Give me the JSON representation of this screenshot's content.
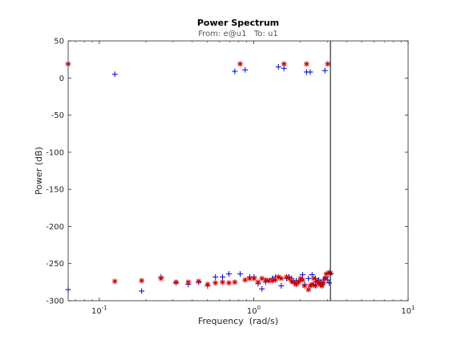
{
  "chart_data": {
    "type": "scatter",
    "title": "Power Spectrum",
    "subtitle": "From: e@u1   To: u1",
    "xlabel": "Frequency  (rad/s)",
    "ylabel": "Power (dB)",
    "xscale": "log",
    "xlim": [
      0.0628,
      10
    ],
    "ylim": [
      -300,
      50
    ],
    "x_ticks": [
      {
        "value": 0.1,
        "base": "10",
        "exp": "-1"
      },
      {
        "value": 1,
        "base": "10",
        "exp": "0"
      },
      {
        "value": 10,
        "base": "10",
        "exp": "1"
      }
    ],
    "y_ticks": [
      {
        "value": 50,
        "label": "50"
      },
      {
        "value": 0,
        "label": "0"
      },
      {
        "value": -50,
        "label": "-50"
      },
      {
        "value": -100,
        "label": "-100"
      },
      {
        "value": -150,
        "label": "-150"
      },
      {
        "value": -200,
        "label": "-200"
      },
      {
        "value": -250,
        "label": "-250"
      },
      {
        "value": -300,
        "label": "-300"
      }
    ],
    "vertical_line_x": 3.14,
    "grid": false,
    "series": [
      {
        "marker": "plus",
        "color": "#0000cc",
        "x": [
          0.0628,
          0.126,
          0.188,
          0.251,
          0.314,
          0.377,
          0.44,
          0.503,
          0.565,
          0.628,
          0.691,
          0.754,
          0.817,
          0.88,
          0.942,
          1.005,
          1.068,
          1.131,
          1.194,
          1.257,
          1.319,
          1.382,
          1.445,
          1.508,
          1.571,
          1.634,
          1.696,
          1.759,
          1.822,
          1.885,
          1.948,
          2.011,
          2.073,
          2.136,
          2.199,
          2.262,
          2.325,
          2.388,
          2.45,
          2.513,
          2.576,
          2.639,
          2.702,
          2.765,
          2.827,
          2.89,
          2.953,
          3.016,
          3.079,
          3.14
        ],
        "y": [
          -285,
          5,
          -287,
          -268,
          -276,
          -278,
          -275,
          -280,
          -268,
          -268,
          -264,
          9,
          -264,
          11,
          -268,
          -268,
          -277,
          -284,
          -275,
          -273,
          -270,
          -268,
          15,
          -280,
          13,
          -270,
          -268,
          -270,
          -276,
          -273,
          -275,
          -272,
          -265,
          -278,
          8,
          -270,
          8,
          -265,
          -278,
          -270,
          -275,
          -272,
          -275,
          -278,
          -272,
          10,
          -268,
          -272,
          -276,
          -264
        ]
      },
      {
        "marker": "star",
        "color": "#cc0000",
        "x": [
          0.0628,
          0.126,
          0.188,
          0.251,
          0.314,
          0.377,
          0.44,
          0.503,
          0.565,
          0.628,
          0.691,
          0.754,
          0.817,
          0.88,
          0.942,
          1.005,
          1.068,
          1.131,
          1.194,
          1.257,
          1.319,
          1.382,
          1.445,
          1.508,
          1.571,
          1.634,
          1.696,
          1.759,
          1.822,
          1.885,
          1.948,
          2.011,
          2.073,
          2.136,
          2.199,
          2.262,
          2.325,
          2.388,
          2.45,
          2.513,
          2.576,
          2.639,
          2.702,
          2.765,
          2.827,
          2.89,
          2.953,
          3.016,
          3.079,
          3.14
        ],
        "y": [
          19,
          -274,
          -273,
          -270,
          -275,
          -275,
          -274,
          -278,
          -276,
          -275,
          -276,
          -275,
          19,
          -272,
          -270,
          -270,
          -275,
          -270,
          -272,
          -273,
          -273,
          -272,
          -268,
          -270,
          19,
          -268,
          -270,
          -274,
          -275,
          -278,
          -275,
          -270,
          -272,
          -280,
          19,
          -285,
          -280,
          -278,
          -270,
          -280,
          -274,
          -276,
          -278,
          -280,
          -276,
          -270,
          -264,
          19,
          -262,
          -263
        ]
      }
    ]
  }
}
